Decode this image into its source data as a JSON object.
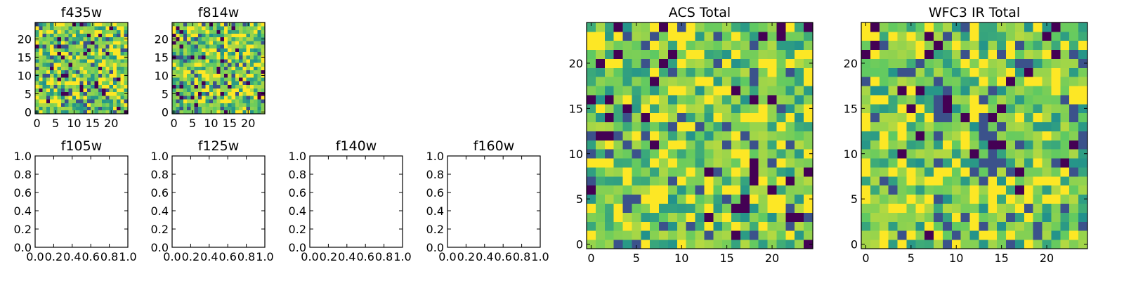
{
  "colormap": [
    "#440154",
    "#3b528b",
    "#21918c",
    "#5ec962",
    "#fde725"
  ],
  "chart_data": [
    {
      "id": "f435w",
      "type": "heatmap",
      "title": "f435w",
      "nx": 25,
      "ny": 25,
      "xlim": [
        -0.5,
        24.5
      ],
      "ylim": [
        -0.5,
        24.5
      ],
      "xticks": [
        0,
        5,
        10,
        15,
        20
      ],
      "yticks": [
        0,
        5,
        10,
        15,
        20
      ],
      "grid": false
    },
    {
      "id": "f814w",
      "type": "heatmap",
      "title": "f814w",
      "nx": 25,
      "ny": 25,
      "xlim": [
        -0.5,
        24.5
      ],
      "ylim": [
        -0.5,
        24.5
      ],
      "xticks": [
        0,
        5,
        10,
        15,
        20
      ],
      "yticks": [
        0,
        5,
        10,
        15,
        20
      ],
      "grid": false
    },
    {
      "id": "f105w",
      "type": "empty",
      "title": "f105w",
      "xlim": [
        0,
        1
      ],
      "ylim": [
        0,
        1
      ],
      "xticks": [
        0.0,
        0.2,
        0.4,
        0.6,
        0.8,
        1.0
      ],
      "yticks": [
        0.0,
        0.2,
        0.4,
        0.6,
        0.8,
        1.0
      ],
      "xticklabels": [
        "0.0",
        "0.2",
        "0.4",
        "0.6",
        "0.8",
        "1.0"
      ],
      "yticklabels": [
        "0.0",
        "0.2",
        "0.4",
        "0.6",
        "0.8",
        "1.0"
      ],
      "grid": false
    },
    {
      "id": "f125w",
      "type": "empty",
      "title": "f125w",
      "xlim": [
        0,
        1
      ],
      "ylim": [
        0,
        1
      ],
      "xticks": [
        0.0,
        0.2,
        0.4,
        0.6,
        0.8,
        1.0
      ],
      "yticks": [
        0.0,
        0.2,
        0.4,
        0.6,
        0.8,
        1.0
      ],
      "xticklabels": [
        "0.0",
        "0.2",
        "0.4",
        "0.6",
        "0.8",
        "1.0"
      ],
      "yticklabels": [
        "0.0",
        "0.2",
        "0.4",
        "0.6",
        "0.8",
        "1.0"
      ],
      "grid": false
    },
    {
      "id": "f140w",
      "type": "empty",
      "title": "f140w",
      "xlim": [
        0,
        1
      ],
      "ylim": [
        0,
        1
      ],
      "xticks": [
        0.0,
        0.2,
        0.4,
        0.6,
        0.8,
        1.0
      ],
      "yticks": [
        0.0,
        0.2,
        0.4,
        0.6,
        0.8,
        1.0
      ],
      "xticklabels": [
        "0.0",
        "0.2",
        "0.4",
        "0.6",
        "0.8",
        "1.0"
      ],
      "yticklabels": [
        "0.0",
        "0.2",
        "0.4",
        "0.6",
        "0.8",
        "1.0"
      ],
      "grid": false
    },
    {
      "id": "f160w",
      "type": "empty",
      "title": "f160w",
      "xlim": [
        0,
        1
      ],
      "ylim": [
        0,
        1
      ],
      "xticks": [
        0.0,
        0.2,
        0.4,
        0.6,
        0.8,
        1.0
      ],
      "yticks": [
        0.0,
        0.2,
        0.4,
        0.6,
        0.8,
        1.0
      ],
      "xticklabels": [
        "0.0",
        "0.2",
        "0.4",
        "0.6",
        "0.8",
        "1.0"
      ],
      "yticklabels": [
        "0.0",
        "0.2",
        "0.4",
        "0.6",
        "0.8",
        "1.0"
      ],
      "grid": false
    },
    {
      "id": "acs-total",
      "type": "heatmap",
      "title": "ACS Total",
      "nx": 25,
      "ny": 25,
      "xlim": [
        -0.5,
        24.5
      ],
      "ylim": [
        -0.5,
        24.5
      ],
      "xticks": [
        0,
        5,
        10,
        15,
        20
      ],
      "yticks": [
        0,
        5,
        10,
        15,
        20
      ],
      "grid": false
    },
    {
      "id": "wfc3-ir-total",
      "type": "heatmap",
      "title": "WFC3 IR Total",
      "nx": 25,
      "ny": 25,
      "xlim": [
        -0.5,
        24.5
      ],
      "ylim": [
        -0.5,
        24.5
      ],
      "xticks": [
        0,
        5,
        10,
        15,
        20
      ],
      "yticks": [
        0,
        5,
        10,
        15,
        20
      ],
      "grid": false
    }
  ]
}
